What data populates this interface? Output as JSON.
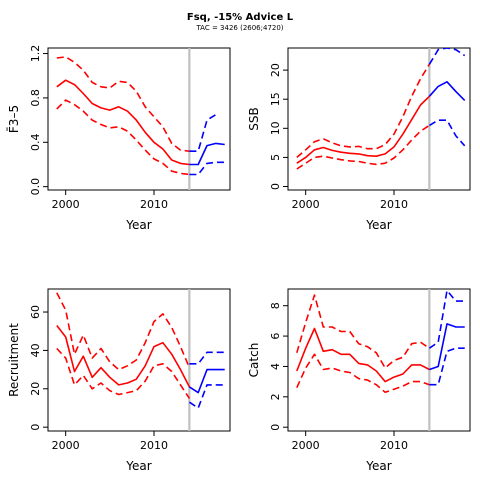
{
  "figure": {
    "title": "Fsq, -15% Advice L",
    "subtitle": "TAC = 3426 (2606;4720)"
  },
  "colors": {
    "historical": "#ff0000",
    "projection": "#0000ff",
    "reference_line": "#c0c0c0",
    "axis": "#000000"
  },
  "chart_data": [
    {
      "type": "line",
      "ylabel": "F̄3–5",
      "xlabel": "Year",
      "xlim": [
        1998,
        2018.6
      ],
      "ylim": [
        -0.03,
        1.25
      ],
      "xticks": [
        2000,
        2010
      ],
      "yticks": [
        0.0,
        0.4,
        0.8,
        1.2
      ],
      "ytick_labels": [
        "0.0",
        "0.4",
        "0.8",
        "1.2"
      ],
      "vline": 2014,
      "series": [
        {
          "role": "historical-median",
          "dash": false,
          "x": [
            1999,
            2000,
            2001,
            2002,
            2003,
            2004,
            2005,
            2006,
            2007,
            2008,
            2009,
            2010,
            2011,
            2012,
            2013,
            2014
          ],
          "y": [
            0.9,
            0.96,
            0.92,
            0.84,
            0.75,
            0.71,
            0.69,
            0.72,
            0.68,
            0.6,
            0.49,
            0.4,
            0.34,
            0.24,
            0.21,
            0.2
          ]
        },
        {
          "role": "historical-upper",
          "dash": true,
          "x": [
            1999,
            2000,
            2001,
            2002,
            2003,
            2004,
            2005,
            2006,
            2007,
            2008,
            2009,
            2010,
            2011,
            2012,
            2013,
            2014
          ],
          "y": [
            1.16,
            1.17,
            1.12,
            1.05,
            0.94,
            0.9,
            0.89,
            0.95,
            0.94,
            0.86,
            0.72,
            0.63,
            0.54,
            0.39,
            0.33,
            0.32
          ]
        },
        {
          "role": "historical-lower",
          "dash": true,
          "x": [
            1999,
            2000,
            2001,
            2002,
            2003,
            2004,
            2005,
            2006,
            2007,
            2008,
            2009,
            2010,
            2011,
            2012,
            2013,
            2014
          ],
          "y": [
            0.7,
            0.78,
            0.74,
            0.68,
            0.6,
            0.56,
            0.53,
            0.54,
            0.5,
            0.42,
            0.33,
            0.25,
            0.21,
            0.14,
            0.12,
            0.11
          ]
        },
        {
          "role": "projection-median",
          "dash": false,
          "x": [
            2014,
            2015,
            2016,
            2017,
            2018
          ],
          "y": [
            0.2,
            0.2,
            0.37,
            0.39,
            0.38
          ]
        },
        {
          "role": "projection-upper",
          "dash": true,
          "x": [
            2014,
            2015,
            2016,
            2017
          ],
          "y": [
            0.32,
            0.32,
            0.6,
            0.65
          ]
        },
        {
          "role": "projection-lower",
          "dash": true,
          "x": [
            2014,
            2015,
            2016,
            2017,
            2018
          ],
          "y": [
            0.11,
            0.11,
            0.21,
            0.22,
            0.22
          ]
        }
      ]
    },
    {
      "type": "line",
      "ylabel": "SSB",
      "xlabel": "Year",
      "xlim": [
        1998,
        2018.6
      ],
      "ylim": [
        -0.6,
        23.8
      ],
      "xticks": [
        2000,
        2010
      ],
      "yticks": [
        0,
        5,
        10,
        15,
        20
      ],
      "ytick_labels": [
        "0",
        "5",
        "10",
        "15",
        "20"
      ],
      "vline": 2014,
      "series": [
        {
          "role": "historical-median",
          "dash": false,
          "x": [
            1999,
            2000,
            2001,
            2002,
            2003,
            2004,
            2005,
            2006,
            2007,
            2008,
            2009,
            2010,
            2011,
            2012,
            2013,
            2014
          ],
          "y": [
            4.0,
            5.0,
            6.3,
            6.7,
            6.2,
            5.9,
            5.7,
            5.6,
            5.3,
            5.2,
            5.6,
            6.8,
            9.0,
            11.5,
            14.0,
            15.5
          ]
        },
        {
          "role": "historical-upper",
          "dash": true,
          "x": [
            1999,
            2000,
            2001,
            2002,
            2003,
            2004,
            2005,
            2006,
            2007,
            2008,
            2009,
            2010,
            2011,
            2012,
            2013,
            2014
          ],
          "y": [
            5.0,
            6.3,
            7.7,
            8.2,
            7.5,
            7.0,
            6.8,
            6.9,
            6.5,
            6.5,
            7.2,
            9.0,
            12.0,
            15.5,
            18.5,
            21.0
          ]
        },
        {
          "role": "historical-lower",
          "dash": true,
          "x": [
            1999,
            2000,
            2001,
            2002,
            2003,
            2004,
            2005,
            2006,
            2007,
            2008,
            2009,
            2010,
            2011,
            2012,
            2013,
            2014
          ],
          "y": [
            3.0,
            4.0,
            5.0,
            5.2,
            4.9,
            4.6,
            4.4,
            4.3,
            4.0,
            3.8,
            4.0,
            4.9,
            6.3,
            8.0,
            9.5,
            10.5
          ]
        },
        {
          "role": "projection-median",
          "dash": false,
          "x": [
            2014,
            2015,
            2016,
            2017,
            2018
          ],
          "y": [
            15.5,
            17.2,
            18.0,
            16.3,
            14.8
          ]
        },
        {
          "role": "projection-upper",
          "dash": true,
          "x": [
            2014,
            2015,
            2016,
            2017,
            2018
          ],
          "y": [
            21.0,
            23.5,
            23.8,
            23.5,
            22.5
          ]
        },
        {
          "role": "projection-lower",
          "dash": true,
          "x": [
            2014,
            2015,
            2016,
            2017,
            2018
          ],
          "y": [
            10.5,
            11.4,
            11.4,
            8.7,
            7.0
          ]
        }
      ]
    },
    {
      "type": "line",
      "ylabel": "Recruitment",
      "xlabel": "Year",
      "xlim": [
        1998,
        2018.6
      ],
      "ylim": [
        -2,
        72
      ],
      "xticks": [
        2000,
        2010
      ],
      "yticks": [
        0,
        20,
        40,
        60
      ],
      "ytick_labels": [
        "0",
        "20",
        "40",
        "60"
      ],
      "vline": 2014,
      "series": [
        {
          "role": "historical-median",
          "dash": false,
          "x": [
            1999,
            2000,
            2001,
            2002,
            2003,
            2004,
            2005,
            2006,
            2007,
            2008,
            2009,
            2010,
            2011,
            2012,
            2013,
            2014
          ],
          "y": [
            53,
            47,
            29,
            37,
            26,
            31,
            26,
            22,
            23,
            25,
            32,
            42,
            44,
            38,
            30,
            21
          ]
        },
        {
          "role": "historical-upper",
          "dash": true,
          "x": [
            1999,
            2000,
            2001,
            2002,
            2003,
            2004,
            2005,
            2006,
            2007,
            2008,
            2009,
            2010,
            2011,
            2012,
            2013,
            2014
          ],
          "y": [
            70,
            61,
            38,
            48,
            36,
            41,
            34,
            30,
            32,
            35,
            44,
            55,
            59,
            52,
            42,
            31
          ]
        },
        {
          "role": "historical-lower",
          "dash": true,
          "x": [
            1999,
            2000,
            2001,
            2002,
            2003,
            2004,
            2005,
            2006,
            2007,
            2008,
            2009,
            2010,
            2011,
            2012,
            2013,
            2014
          ],
          "y": [
            41,
            36,
            22,
            27,
            20,
            23,
            19,
            17,
            18,
            19,
            24,
            32,
            33,
            29,
            22,
            15
          ]
        },
        {
          "role": "projection-median",
          "dash": false,
          "x": [
            2014,
            2015,
            2016,
            2017,
            2018
          ],
          "y": [
            21,
            18,
            30,
            30,
            30
          ]
        },
        {
          "role": "projection-upper",
          "dash": true,
          "x": [
            2014,
            2015,
            2016,
            2017,
            2018
          ],
          "y": [
            33,
            33,
            39,
            39,
            39
          ]
        },
        {
          "role": "projection-lower",
          "dash": true,
          "x": [
            2014,
            2015,
            2016,
            2017,
            2018
          ],
          "y": [
            13,
            10,
            22,
            22,
            22
          ]
        }
      ]
    },
    {
      "type": "line",
      "ylabel": "Catch",
      "xlabel": "Year",
      "xlim": [
        1998,
        2018.6
      ],
      "ylim": [
        -0.25,
        9.1
      ],
      "xticks": [
        2000,
        2010
      ],
      "yticks": [
        0,
        2,
        4,
        6,
        8
      ],
      "ytick_labels": [
        "0",
        "2",
        "4",
        "6",
        "8"
      ],
      "vline": 2014,
      "series": [
        {
          "role": "historical-median",
          "dash": false,
          "x": [
            1999,
            2000,
            2001,
            2002,
            2003,
            2004,
            2005,
            2006,
            2007,
            2008,
            2009,
            2010,
            2011,
            2012,
            2013,
            2014
          ],
          "y": [
            3.7,
            5.2,
            6.5,
            5.0,
            5.1,
            4.8,
            4.8,
            4.2,
            4.1,
            3.7,
            3.0,
            3.3,
            3.5,
            4.1,
            4.1,
            3.8
          ]
        },
        {
          "role": "historical-upper",
          "dash": true,
          "x": [
            1999,
            2000,
            2001,
            2002,
            2003,
            2004,
            2005,
            2006,
            2007,
            2008,
            2009,
            2010,
            2011,
            2012,
            2013,
            2014
          ],
          "y": [
            4.9,
            6.9,
            8.7,
            6.6,
            6.6,
            6.3,
            6.3,
            5.5,
            5.3,
            4.9,
            3.9,
            4.4,
            4.6,
            5.5,
            5.6,
            5.2
          ]
        },
        {
          "role": "historical-lower",
          "dash": true,
          "x": [
            1999,
            2000,
            2001,
            2002,
            2003,
            2004,
            2005,
            2006,
            2007,
            2008,
            2009,
            2010,
            2011,
            2012,
            2013,
            2014
          ],
          "y": [
            2.6,
            3.9,
            4.8,
            3.8,
            3.9,
            3.7,
            3.6,
            3.2,
            3.1,
            2.8,
            2.3,
            2.5,
            2.7,
            3.0,
            3.0,
            2.8
          ]
        },
        {
          "role": "projection-median",
          "dash": false,
          "x": [
            2014,
            2015,
            2016,
            2017,
            2018
          ],
          "y": [
            3.8,
            4.0,
            6.8,
            6.6,
            6.6
          ]
        },
        {
          "role": "projection-upper",
          "dash": true,
          "x": [
            2014,
            2015,
            2016,
            2017,
            2018
          ],
          "y": [
            5.2,
            5.6,
            9.0,
            8.3,
            8.3
          ]
        },
        {
          "role": "projection-lower",
          "dash": true,
          "x": [
            2014,
            2015,
            2016,
            2017,
            2018
          ],
          "y": [
            2.8,
            2.8,
            5.0,
            5.2,
            5.2
          ]
        }
      ]
    }
  ]
}
